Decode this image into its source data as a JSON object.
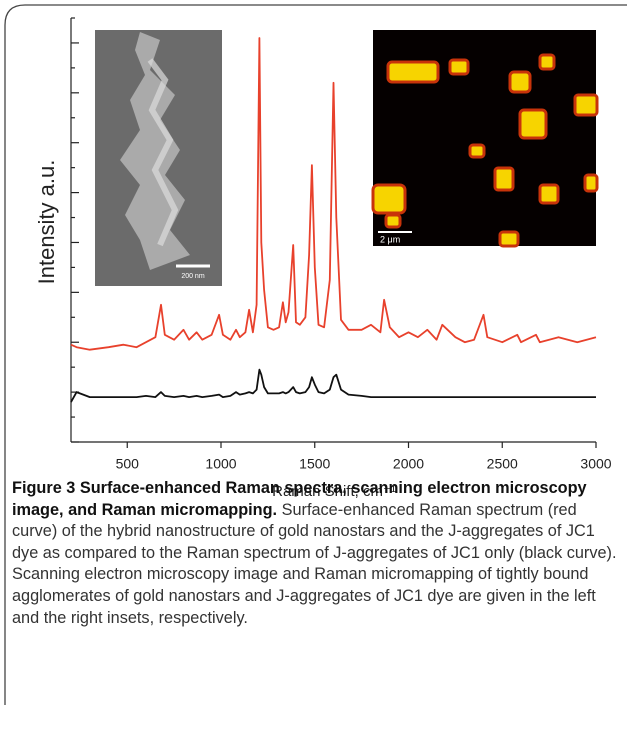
{
  "chart_data": {
    "type": "line",
    "y_label": "Intensity a.u.",
    "x_label": "Raman Shift, cm⁻¹",
    "annotations": [
      "200 nm",
      "2 μm"
    ],
    "x": [
      200,
      230,
      300,
      400,
      480,
      550,
      600,
      650,
      680,
      700,
      750,
      800,
      830,
      870,
      900,
      950,
      990,
      1010,
      1050,
      1080,
      1100,
      1130,
      1150,
      1170,
      1190,
      1205,
      1215,
      1230,
      1250,
      1280,
      1310,
      1330,
      1345,
      1360,
      1385,
      1400,
      1420,
      1450,
      1470,
      1485,
      1500,
      1520,
      1550,
      1580,
      1600,
      1615,
      1640,
      1680,
      1750,
      1800,
      1850,
      1870,
      1900,
      1950,
      2000,
      2050,
      2100,
      2150,
      2180,
      2250,
      2300,
      2350,
      2400,
      2420,
      2500,
      2580,
      2600,
      2680,
      2700,
      2800,
      2900,
      3000
    ],
    "series": [
      {
        "color": "#e8412c",
        "values": [
          3.9,
          3.8,
          3.7,
          3.8,
          3.9,
          3.8,
          4.0,
          4.2,
          5.5,
          4.3,
          4.1,
          4.5,
          4.1,
          4.4,
          4.1,
          4.3,
          5.1,
          4.3,
          4.1,
          4.5,
          4.2,
          4.4,
          5.3,
          4.4,
          5.5,
          16.2,
          8.0,
          6.1,
          4.6,
          4.5,
          4.6,
          5.6,
          4.8,
          5.2,
          7.9,
          4.8,
          4.7,
          5.0,
          7.5,
          11.1,
          7.0,
          4.7,
          4.6,
          6.5,
          14.4,
          9.0,
          4.9,
          4.5,
          4.5,
          4.7,
          4.4,
          5.7,
          4.6,
          4.2,
          4.4,
          4.2,
          4.5,
          4.1,
          4.7,
          4.2,
          4.0,
          4.1,
          5.1,
          4.2,
          4.0,
          4.3,
          4.0,
          4.3,
          4.0,
          4.2,
          4.0,
          4.2
        ]
      },
      {
        "color": "#111111",
        "values": [
          1.6,
          2.0,
          1.8,
          1.8,
          1.8,
          1.8,
          1.85,
          1.8,
          2.0,
          1.85,
          1.8,
          1.85,
          1.8,
          1.85,
          1.8,
          1.85,
          1.9,
          1.8,
          1.85,
          2.0,
          1.9,
          1.95,
          2.0,
          1.95,
          2.1,
          2.9,
          2.7,
          2.2,
          1.95,
          1.95,
          1.95,
          2.0,
          1.95,
          2.0,
          2.2,
          2.0,
          1.95,
          2.0,
          2.2,
          2.6,
          2.3,
          2.0,
          1.95,
          2.1,
          2.6,
          2.7,
          2.1,
          1.9,
          1.85,
          1.8,
          1.8,
          1.8,
          1.8,
          1.8,
          1.8,
          1.8,
          1.8,
          1.8,
          1.8,
          1.8,
          1.8,
          1.8,
          1.8,
          1.8,
          1.8,
          1.8,
          1.8,
          1.8,
          1.8,
          1.8,
          1.8,
          1.8
        ]
      }
    ],
    "xlim": [
      200,
      3000
    ],
    "xticks": [
      500,
      1000,
      1500,
      2000,
      2500,
      3000
    ],
    "ylim": [
      0,
      17
    ],
    "yticks": [
      0,
      1,
      2,
      3,
      4,
      5,
      6,
      7,
      8,
      9,
      10,
      11,
      12,
      13,
      14,
      15,
      16,
      17
    ]
  },
  "caption": {
    "label": "Figure 3",
    "title": "Surface-enhanced Raman spectra, scanning electron microscopy image, and Raman micromapping.",
    "text": "Surface-enhanced Raman spectrum (red curve) of the hybrid nanostructure of gold nanostars and the J-aggregates of JC1 dye as compared to the Raman spectrum of J-aggregates of JC1 only (black curve). Scanning electron microscopy image and Raman micromapping of tightly bound agglomerates of gold nanostars and J-aggregates of JC1 dye are given in the left and the right insets, respectively."
  }
}
